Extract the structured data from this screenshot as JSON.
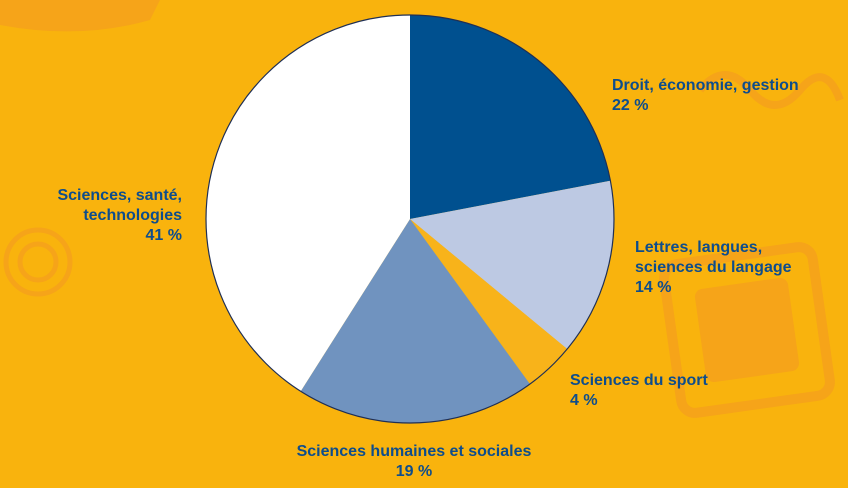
{
  "chart_data": {
    "type": "pie",
    "title": "",
    "unit": "%",
    "slices": [
      {
        "label_lines": [
          "Droit, économie, gestion"
        ],
        "pct_text": "22 %",
        "value": 22,
        "color": "#00508F"
      },
      {
        "label_lines": [
          "Lettres, langues,",
          "sciences du langage"
        ],
        "pct_text": "14 %",
        "value": 14,
        "color": "#BDC9E3"
      },
      {
        "label_lines": [
          "Sciences du sport"
        ],
        "pct_text": "4 %",
        "value": 4,
        "color": "#F8B31A"
      },
      {
        "label_lines": [
          "Sciences humaines et sociales"
        ],
        "pct_text": "19 %",
        "value": 19,
        "color": "#7093BF"
      },
      {
        "label_lines": [
          "Sciences, santé,",
          "technologies"
        ],
        "pct_text": "41 %",
        "value": 41,
        "color": "#FFFFFF"
      }
    ]
  },
  "colors": {
    "background": "#F9B30D",
    "background_decoration": "#F6A419",
    "label_text": "#0E4D8C",
    "slice_outline": "#1F2F55"
  }
}
